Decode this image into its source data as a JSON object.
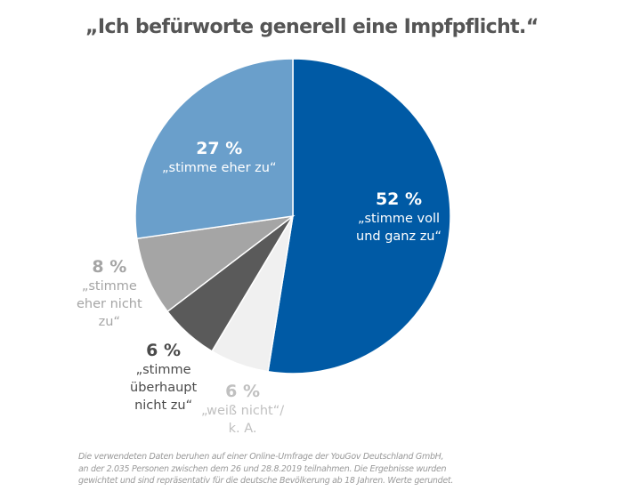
{
  "chart_data": {
    "type": "pie",
    "title": "„Ich befürworte generell eine Impfpflicht.“",
    "slices": [
      {
        "label_pct": "52 %",
        "label_lines": [
          "„stimme voll",
          "und ganz zu“"
        ],
        "value": 52,
        "color": "#005aa5",
        "text_color": "#ffffff"
      },
      {
        "label_pct": "6 %",
        "label_lines": [
          "„weiß nicht“/",
          "k. A."
        ],
        "value": 6,
        "color": "#f0f0f0",
        "text_color": "#c0c0c0"
      },
      {
        "label_pct": "6 %",
        "label_lines": [
          "„stimme",
          "überhaupt",
          "nicht zu“"
        ],
        "value": 6,
        "color": "#5a5a5a",
        "text_color": "#4a4a4a"
      },
      {
        "label_pct": "8 %",
        "label_lines": [
          "„stimme",
          "eher nicht",
          "zu“"
        ],
        "value": 8,
        "color": "#a5a5a5",
        "text_color": "#a5a5a5"
      },
      {
        "label_pct": "27 %",
        "label_lines": [
          "„stimme eher zu“"
        ],
        "value": 27,
        "color": "#6a9fcb",
        "text_color": "#ffffff"
      }
    ],
    "start": "top",
    "direction": "clockwise"
  },
  "footnote": [
    "Die verwendeten Daten beruhen auf einer Online-Umfrage der YouGov Deutschland GmbH,",
    "an der 2.035 Personen zwischen dem 26 und 28.8.2019 teilnahmen. Die Ergebnisse wurden",
    "gewichtet und sind repräsentativ für die deutsche Bevölkerung ab 18 Jahren. Werte gerundet."
  ]
}
